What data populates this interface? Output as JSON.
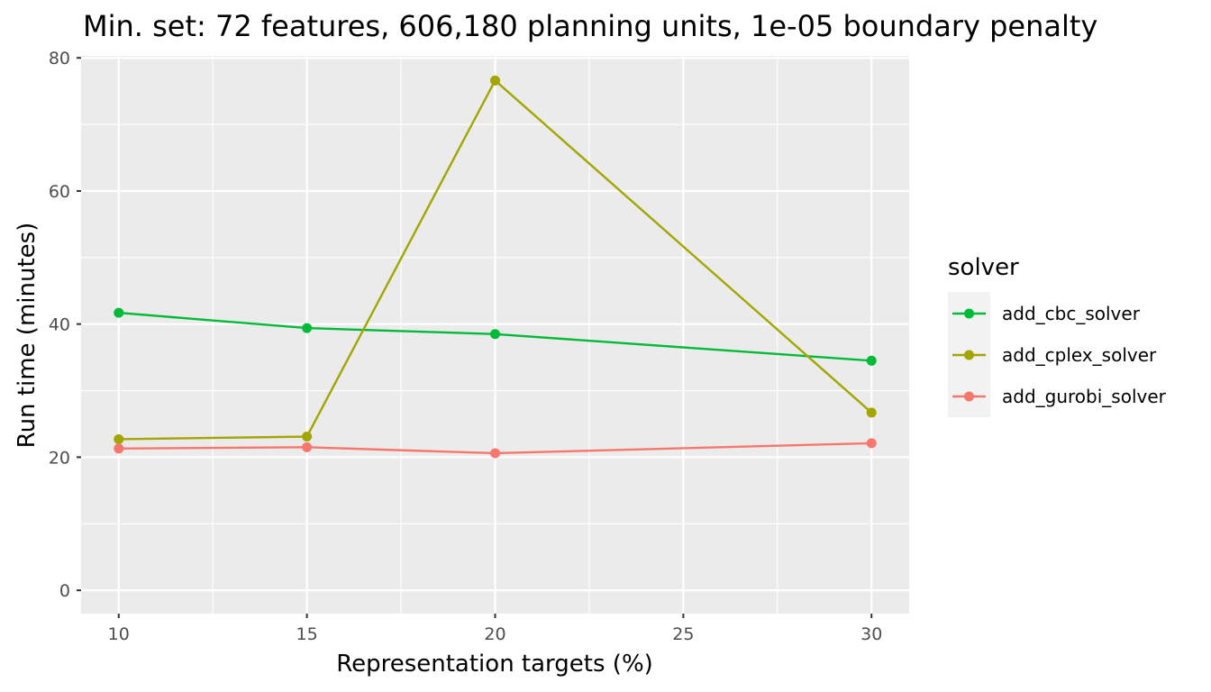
{
  "chart_data": {
    "type": "line",
    "title": "Min. set: 72 features, 606,180 planning units, 1e-05 boundary penalty",
    "xlabel": "Representation targets (%)",
    "ylabel": "Run time (minutes)",
    "xlim": [
      9,
      31
    ],
    "ylim": [
      -3.5,
      80.3
    ],
    "x_ticks": [
      10,
      15,
      20,
      25,
      30
    ],
    "y_ticks": [
      0,
      20,
      40,
      60,
      80
    ],
    "grid": true,
    "legend": {
      "title": "solver",
      "position": "right"
    },
    "x": [
      10,
      15,
      20,
      30
    ],
    "series": [
      {
        "name": "add_cbc_solver",
        "color": "#00BA38",
        "values": [
          41.7,
          39.4,
          38.5,
          34.5
        ]
      },
      {
        "name": "add_cplex_solver",
        "color": "#A3A500",
        "values": [
          22.7,
          23.1,
          76.6,
          26.7
        ]
      },
      {
        "name": "add_gurobi_solver",
        "color": "#F8766D",
        "values": [
          21.3,
          21.5,
          20.6,
          22.1
        ]
      }
    ]
  }
}
